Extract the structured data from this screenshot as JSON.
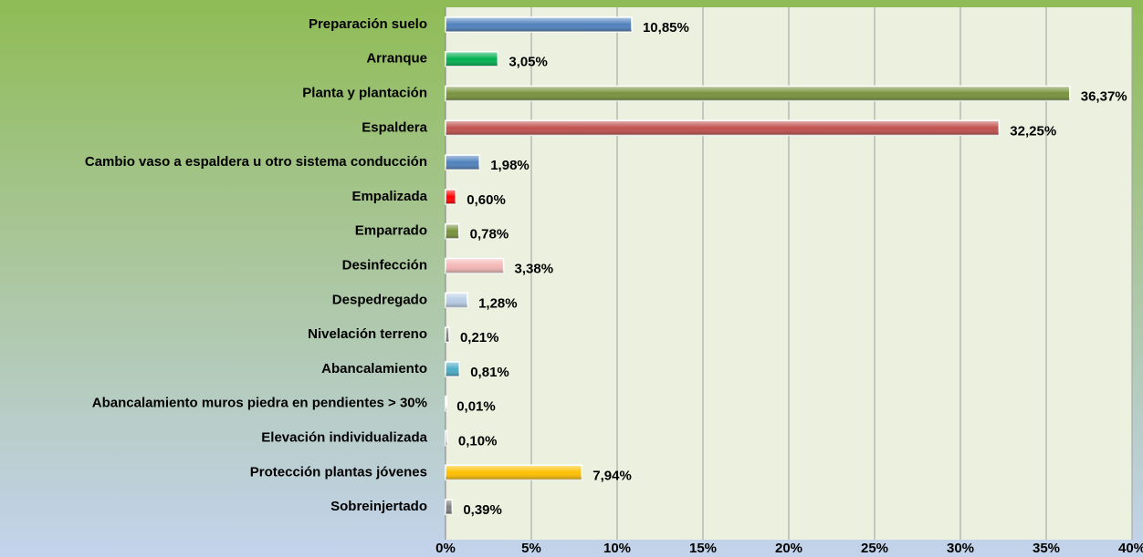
{
  "chart_data": {
    "type": "barh",
    "categories": [
      "Preparación suelo",
      "Arranque",
      "Planta y plantación",
      "Espaldera",
      "Cambio vaso a espaldera u otro sistema conducción",
      "Empalizada",
      "Emparrado",
      "Desinfección",
      "Despedregado",
      "Nivelación terreno",
      "Abancalamiento",
      "Abancalamiento muros piedra en pendientes > 30%",
      "Elevación individualizada",
      "Protección plantas jóvenes",
      "Sobreinjertado"
    ],
    "values": [
      10.85,
      3.05,
      36.37,
      32.25,
      1.98,
      0.6,
      0.78,
      3.38,
      1.28,
      0.21,
      0.81,
      0.01,
      0.1,
      7.94,
      0.39
    ],
    "value_labels": [
      "10,85%",
      "3,05%",
      "36,37%",
      "32,25%",
      "1,98%",
      "0,60%",
      "0,78%",
      "3,38%",
      "1,28%",
      "0,21%",
      "0,81%",
      "0,01%",
      "0,10%",
      "7,94%",
      "0,39%"
    ],
    "colors": [
      "#4f81bd",
      "#00b050",
      "#77933c",
      "#c0504d",
      "#4f81bd",
      "#ff0000",
      "#77933c",
      "#f4b6b6",
      "#b9cde5",
      "#7f7f7f",
      "#4bacc6",
      "#7f7f7f",
      "#7f7f7f",
      "#ffc000",
      "#7f7f7f"
    ],
    "xlim": [
      0,
      40
    ],
    "xticks": [
      {
        "value": 0,
        "label": "0%"
      },
      {
        "value": 5,
        "label": "5%"
      },
      {
        "value": 10,
        "label": "10%"
      },
      {
        "value": 15,
        "label": "15%"
      },
      {
        "value": 20,
        "label": "20%"
      },
      {
        "value": 25,
        "label": "25%"
      },
      {
        "value": 30,
        "label": "30%"
      },
      {
        "value": 35,
        "label": "35%"
      },
      {
        "value": 40,
        "label": "40%"
      }
    ],
    "grid": true
  }
}
